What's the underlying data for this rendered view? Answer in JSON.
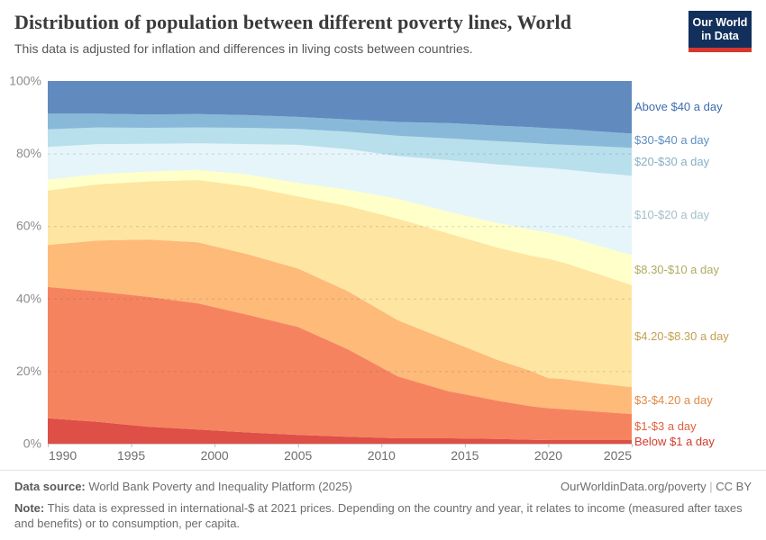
{
  "header": {
    "title": "Distribution of population between different poverty lines, World",
    "subtitle": "This data is adjusted for inflation and differences in living costs between countries.",
    "logo_line1": "Our World",
    "logo_line2": "in Data",
    "logo_bg": "#12305b",
    "logo_bar": "#d7372e"
  },
  "chart_data": {
    "type": "area",
    "stacked": true,
    "grid": "dashed horizontal",
    "legend_position": "right",
    "xlim": [
      1990,
      2025
    ],
    "ylim": [
      0,
      100
    ],
    "x": [
      1990,
      1993,
      1996,
      1999,
      2002,
      2005,
      2008,
      2011,
      2014,
      2017,
      2019,
      2020,
      2021,
      2023,
      2025
    ],
    "x_tick_labels": [
      "1990",
      "1995",
      "2000",
      "2005",
      "2010",
      "2015",
      "2020",
      "2025"
    ],
    "x_tick_values": [
      1990,
      1995,
      2000,
      2005,
      2010,
      2015,
      2020,
      2025
    ],
    "y_tick_labels": [
      "0%",
      "20%",
      "40%",
      "60%",
      "80%",
      "100%"
    ],
    "y_tick_values": [
      0,
      20,
      40,
      60,
      80,
      100
    ],
    "y_gridline_values": [
      20,
      40,
      60,
      80
    ],
    "series": [
      {
        "name": "Below $1 a day",
        "color": "#d73027",
        "label_color": "#d03a2c",
        "values": [
          7.0,
          6.0,
          4.7,
          3.9,
          3.1,
          2.4,
          1.9,
          1.5,
          1.5,
          1.3,
          1.1,
          1.0,
          1.0,
          1.0,
          1.0
        ]
      },
      {
        "name": "$1-$3 a day",
        "color": "#f46d43",
        "label_color": "#e2603f",
        "values": [
          36.2,
          36.0,
          35.8,
          34.8,
          32.4,
          29.8,
          24.1,
          17.0,
          13.0,
          10.5,
          9.2,
          8.8,
          8.5,
          7.8,
          7.2
        ]
      },
      {
        "name": "$3-$4.20 a day",
        "color": "#fdae61",
        "label_color": "#e08a46",
        "values": [
          11.6,
          14.0,
          15.8,
          16.8,
          16.7,
          16.1,
          16.0,
          15.5,
          14.0,
          11.2,
          9.7,
          8.3,
          8.3,
          7.8,
          7.4
        ]
      },
      {
        "name": "$4.20-$8.30 a day",
        "color": "#fee090",
        "label_color": "#c3a052",
        "values": [
          15.0,
          15.5,
          16.0,
          17.2,
          18.7,
          19.9,
          23.5,
          28.0,
          29.5,
          31.0,
          31.8,
          32.9,
          32.0,
          30.2,
          28.1
        ]
      },
      {
        "name": "$8.30-$10 a day",
        "color": "#ffffbf",
        "label_color": "#b1ab5e",
        "values": [
          3.0,
          2.8,
          2.7,
          2.8,
          3.3,
          3.7,
          4.5,
          5.5,
          6.0,
          6.8,
          7.2,
          7.2,
          7.5,
          7.8,
          8.3
        ]
      },
      {
        "name": "$10-$20 a day",
        "color": "#e0f3f8",
        "label_color": "#a3bfcb",
        "values": [
          9.0,
          8.3,
          7.7,
          7.3,
          8.4,
          10.5,
          11.2,
          11.8,
          14.2,
          16.2,
          17.3,
          17.8,
          18.3,
          20.1,
          21.9
        ]
      },
      {
        "name": "$20-$30 a day",
        "color": "#abd9e9",
        "label_color": "#85b0c4",
        "values": [
          4.9,
          4.6,
          4.4,
          4.4,
          4.5,
          4.4,
          4.8,
          5.6,
          6.0,
          6.4,
          6.6,
          6.6,
          6.8,
          7.3,
          7.7
        ]
      },
      {
        "name": "$30-$40 a day",
        "color": "#74add1",
        "label_color": "#5f8fc1",
        "values": [
          4.3,
          3.8,
          3.7,
          3.7,
          3.5,
          3.3,
          3.4,
          3.8,
          4.2,
          4.3,
          4.4,
          4.4,
          4.4,
          4.1,
          3.9
        ]
      },
      {
        "name": "Above $40 a day",
        "color": "#4575b4",
        "label_color": "#3d6cb0",
        "values": [
          9.0,
          9.0,
          9.2,
          9.1,
          9.4,
          9.9,
          10.6,
          11.3,
          11.6,
          12.3,
          12.7,
          13.0,
          13.2,
          13.9,
          14.5
        ]
      }
    ]
  },
  "footer": {
    "source_label": "Data source:",
    "source_text": "World Bank Poverty and Inequality Platform (2025)",
    "link_text": "OurWorldinData.org/poverty",
    "separator": "|",
    "license": "CC BY",
    "note_label": "Note:",
    "note_text": "This data is expressed in international-$ at 2021 prices. Depending on the country and year, it relates to income (measured after taxes and benefits) or to consumption, per capita."
  }
}
